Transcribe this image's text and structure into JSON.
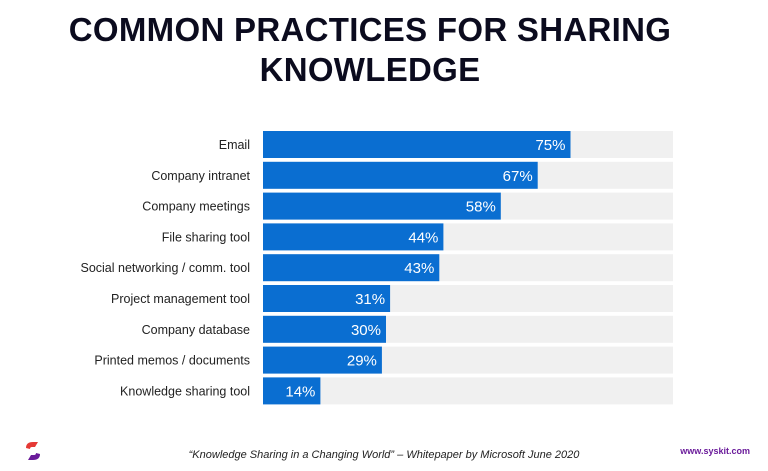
{
  "title_lines": [
    "COMMON PRACTICES FOR SHARING",
    "KNOWLEDGE"
  ],
  "footer": {
    "citation": "“Knowledge Sharing in a Changing World” – Whitepaper by Microsoft June 2020",
    "url": "www.syskit.com"
  },
  "colors": {
    "bar": "#0a6ed1",
    "track": "#f0f0f0",
    "logo_red": "#e53935",
    "logo_purple": "#6a1b9a"
  },
  "chart_data": {
    "type": "bar",
    "orientation": "horizontal",
    "categories": [
      "Email",
      "Company intranet",
      "Company meetings",
      "File sharing tool",
      "Social networking / comm. tool",
      "Project management tool",
      "Company database",
      "Printed memos / documents",
      "Knowledge sharing tool"
    ],
    "values": [
      75,
      67,
      58,
      44,
      43,
      31,
      30,
      29,
      14
    ],
    "value_labels": [
      "75%",
      "67%",
      "58%",
      "44%",
      "43%",
      "31%",
      "30%",
      "29%",
      "14%"
    ],
    "xlim": [
      0,
      100
    ],
    "grid": false,
    "legend": "none"
  }
}
